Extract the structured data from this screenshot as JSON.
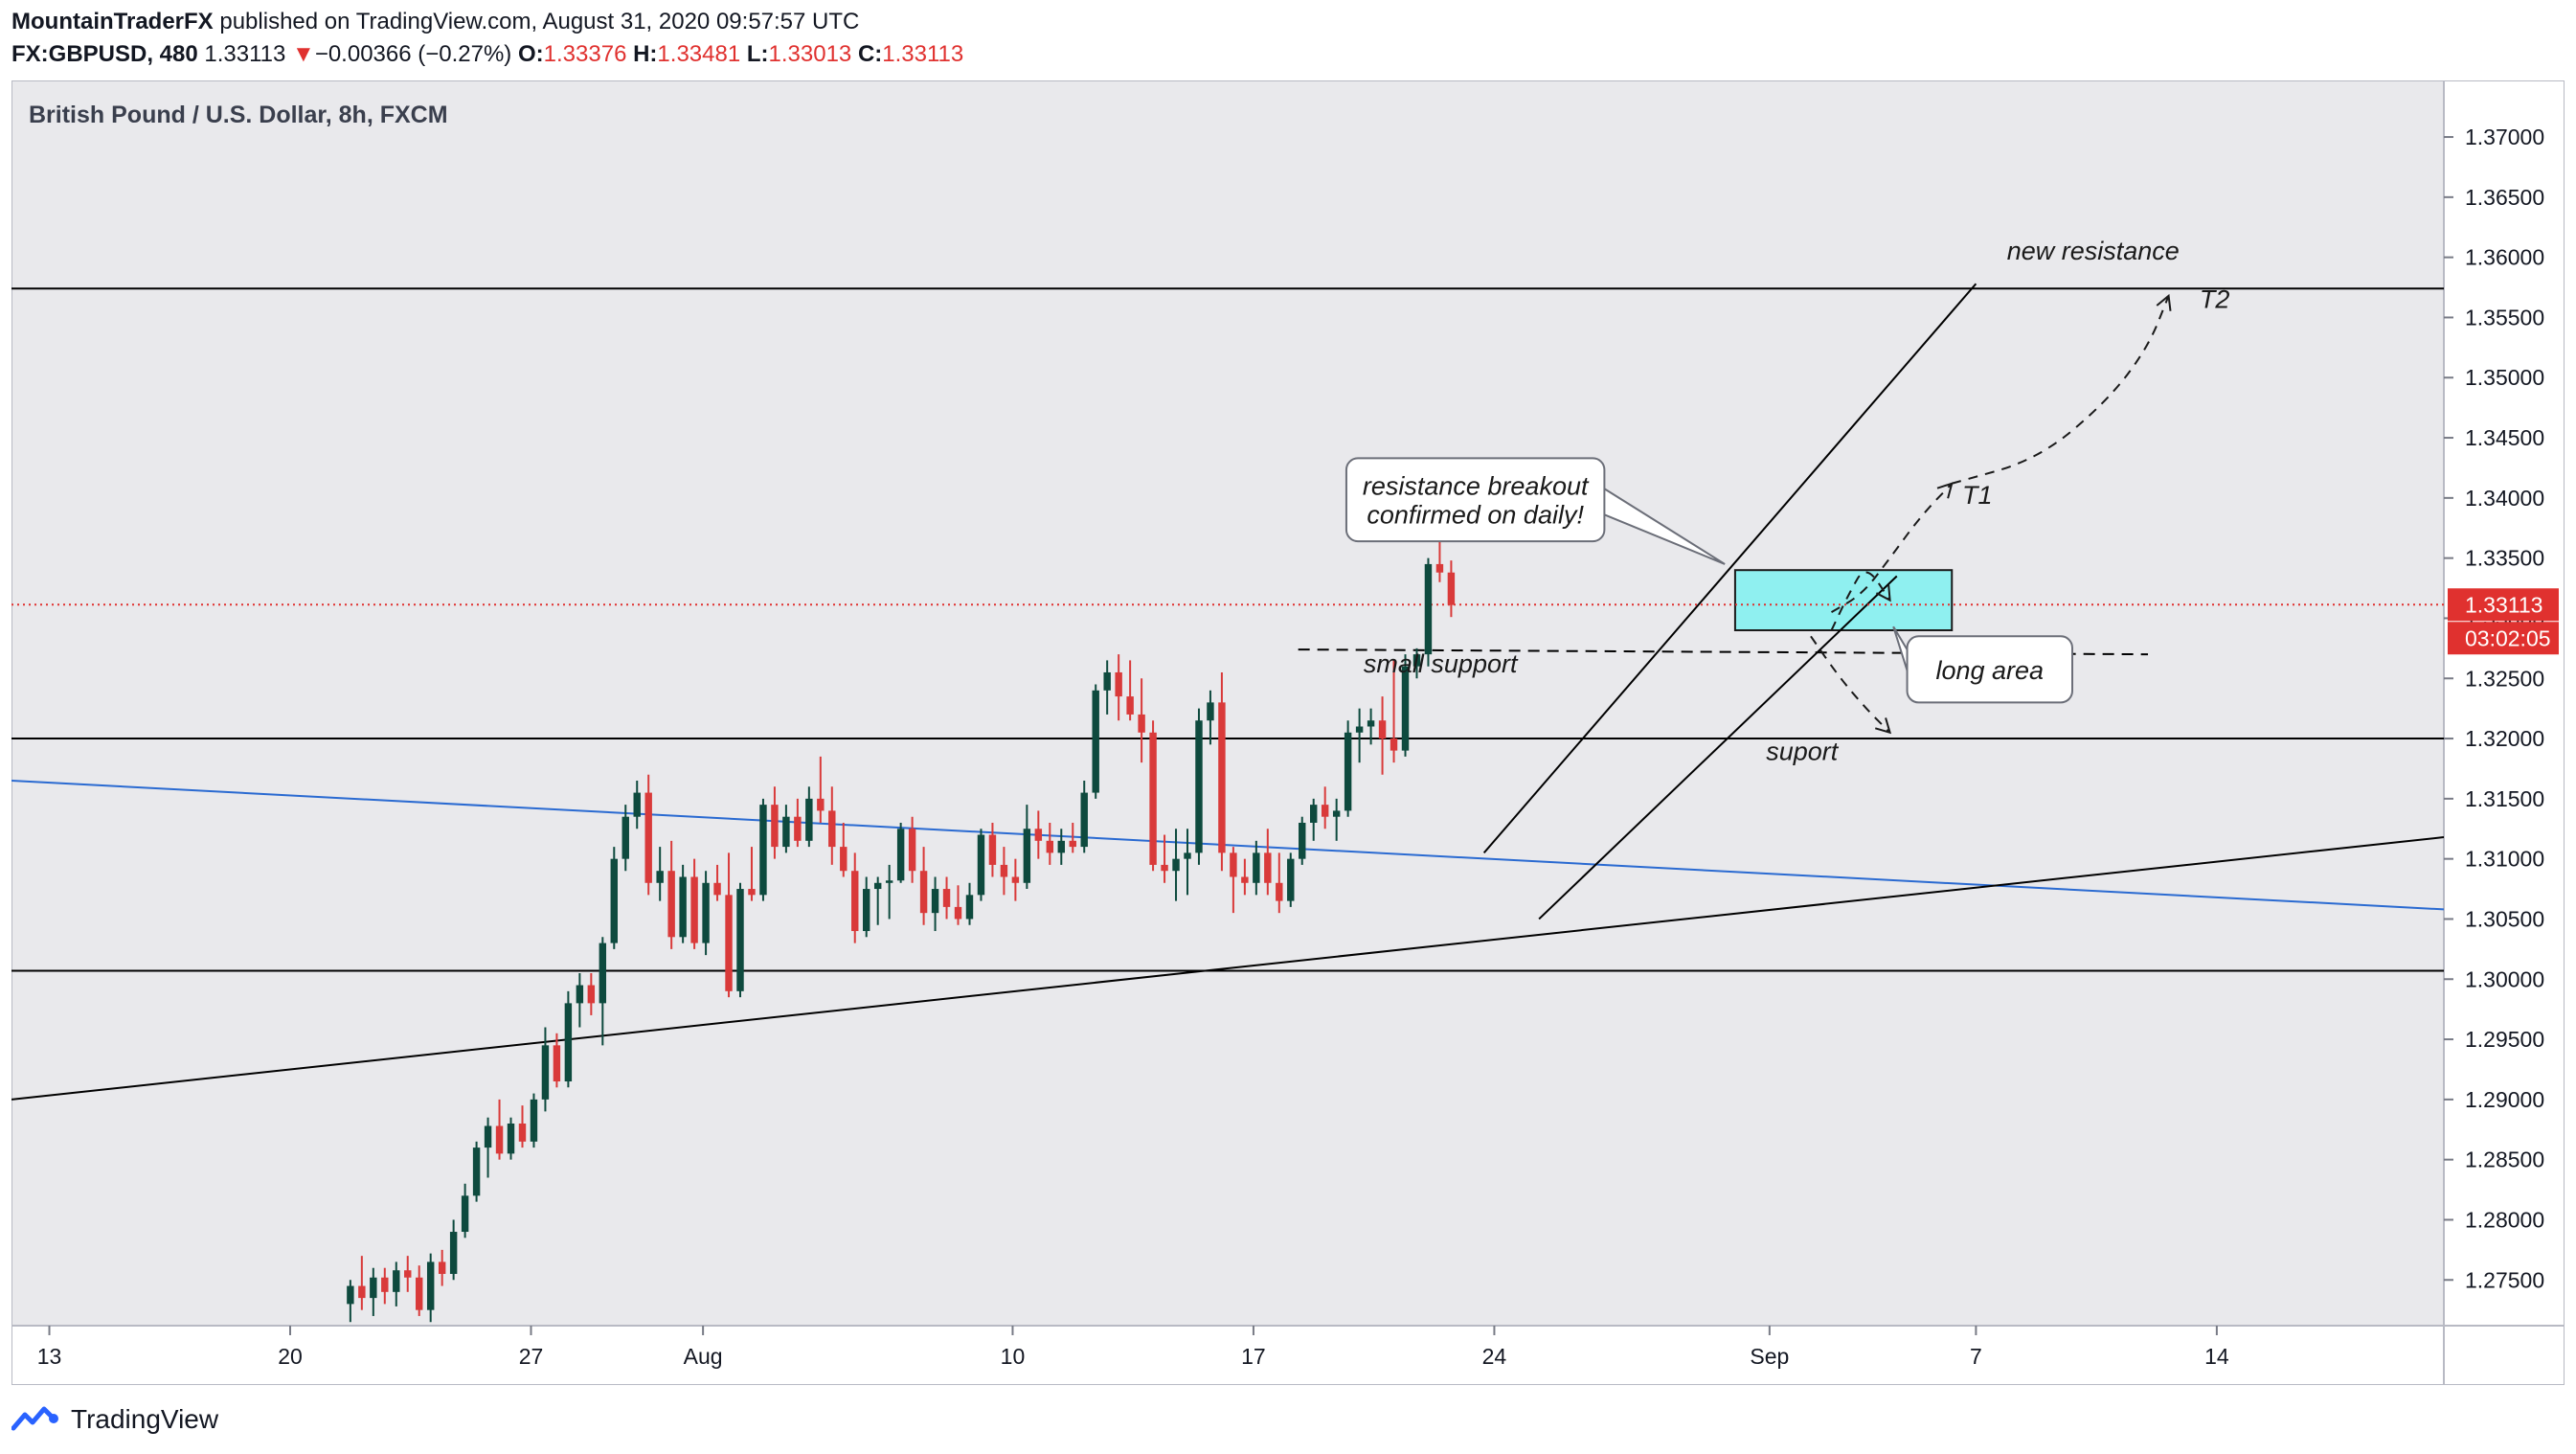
{
  "header": {
    "author": "MountainTraderFX",
    "published_text": "published on TradingView.com, August 31, 2020 09:57:57 UTC",
    "symbol": "FX:GBPUSD, 480",
    "last": "1.33113",
    "change_arrow": "▼",
    "change": "−0.00366 (−0.27%)",
    "o_label": "O:",
    "o": "1.33376",
    "h_label": "H:",
    "h": "1.33481",
    "l_label": "L:",
    "l": "1.33013",
    "c_label": "C:",
    "c": "1.33113"
  },
  "footer": {
    "brand": "TradingView",
    "logo_icon": "tradingview-logo-icon"
  },
  "colors": {
    "up": "#0e4a3e",
    "down": "#d93a3a",
    "blue_line": "#2a6ad1",
    "box_fill": "#8ff0f0",
    "price_tag": "#e0312f",
    "pane_bg": "#e9e9ec",
    "grid_line": "#cfcfd6"
  },
  "chart_data": {
    "type": "candlestick",
    "title": "British Pound / U.S. Dollar, 8h, FXCM",
    "y_ticks": [
      "1.27500",
      "1.28000",
      "1.28500",
      "1.29000",
      "1.29500",
      "1.30000",
      "1.30500",
      "1.31000",
      "1.31500",
      "1.32000",
      "1.32500",
      "1.33000",
      "1.33500",
      "1.34000",
      "1.34500",
      "1.35000",
      "1.35500",
      "1.36000",
      "1.36500",
      "1.37000"
    ],
    "ylim": [
      1.2712,
      1.3747
    ],
    "x_ticks": [
      {
        "label": "13",
        "day": 13
      },
      {
        "label": "20",
        "day": 20
      },
      {
        "label": "27",
        "day": 27
      },
      {
        "label": "Aug",
        "day": 32
      },
      {
        "label": "10",
        "day": 41
      },
      {
        "label": "17",
        "day": 48
      },
      {
        "label": "24",
        "day": 55
      },
      {
        "label": "Sep",
        "day": 63
      },
      {
        "label": "7",
        "day": 69
      },
      {
        "label": "14",
        "day": 76
      }
    ],
    "x_axis_unit": "day number counted from July 1, 2020 (July 13 = 13, Aug 1 = 32, Sep 1 = 63)",
    "xlim": [
      11.9,
      82.6
    ],
    "candles_start_day": 21.75,
    "candles_step_day": 0.3333,
    "candles": [
      [
        1.273,
        1.275,
        1.2715,
        1.2745
      ],
      [
        1.2745,
        1.277,
        1.2725,
        1.2735
      ],
      [
        1.2735,
        1.276,
        1.272,
        1.2752
      ],
      [
        1.2752,
        1.276,
        1.273,
        1.274
      ],
      [
        1.274,
        1.2765,
        1.2728,
        1.2758
      ],
      [
        1.2758,
        1.277,
        1.274,
        1.2752
      ],
      [
        1.2752,
        1.2762,
        1.272,
        1.2725
      ],
      [
        1.2725,
        1.2772,
        1.2715,
        1.2765
      ],
      [
        1.2765,
        1.2775,
        1.2745,
        1.2755
      ],
      [
        1.2755,
        1.28,
        1.275,
        1.279
      ],
      [
        1.279,
        1.283,
        1.2785,
        1.282
      ],
      [
        1.282,
        1.2865,
        1.2815,
        1.286
      ],
      [
        1.286,
        1.2885,
        1.2835,
        1.2878
      ],
      [
        1.2878,
        1.29,
        1.285,
        1.2855
      ],
      [
        1.2855,
        1.2885,
        1.285,
        1.288
      ],
      [
        1.288,
        1.2895,
        1.286,
        1.2865
      ],
      [
        1.2865,
        1.2905,
        1.286,
        1.29
      ],
      [
        1.29,
        1.296,
        1.289,
        1.2945
      ],
      [
        1.2945,
        1.2955,
        1.291,
        1.2915
      ],
      [
        1.2915,
        1.299,
        1.291,
        1.298
      ],
      [
        1.298,
        1.3005,
        1.296,
        1.2995
      ],
      [
        1.2995,
        1.3005,
        1.297,
        1.298
      ],
      [
        1.298,
        1.3035,
        1.2945,
        1.303
      ],
      [
        1.303,
        1.311,
        1.3025,
        1.31
      ],
      [
        1.31,
        1.3145,
        1.309,
        1.3135
      ],
      [
        1.3135,
        1.3165,
        1.3125,
        1.3155
      ],
      [
        1.3155,
        1.317,
        1.307,
        1.308
      ],
      [
        1.308,
        1.311,
        1.3065,
        1.309
      ],
      [
        1.309,
        1.3115,
        1.3025,
        1.3035
      ],
      [
        1.3035,
        1.3095,
        1.303,
        1.3085
      ],
      [
        1.3085,
        1.31,
        1.3025,
        1.303
      ],
      [
        1.303,
        1.309,
        1.302,
        1.308
      ],
      [
        1.308,
        1.3095,
        1.3065,
        1.307
      ],
      [
        1.307,
        1.3105,
        1.2985,
        1.299
      ],
      [
        1.299,
        1.308,
        1.2985,
        1.3075
      ],
      [
        1.3075,
        1.311,
        1.3065,
        1.307
      ],
      [
        1.307,
        1.315,
        1.3065,
        1.3145
      ],
      [
        1.3145,
        1.316,
        1.31,
        1.311
      ],
      [
        1.311,
        1.3145,
        1.3105,
        1.3135
      ],
      [
        1.3135,
        1.315,
        1.311,
        1.3115
      ],
      [
        1.3115,
        1.316,
        1.311,
        1.315
      ],
      [
        1.315,
        1.3185,
        1.313,
        1.314
      ],
      [
        1.314,
        1.316,
        1.3095,
        1.311
      ],
      [
        1.311,
        1.313,
        1.3085,
        1.309
      ],
      [
        1.309,
        1.3105,
        1.303,
        1.304
      ],
      [
        1.304,
        1.3085,
        1.3035,
        1.3075
      ],
      [
        1.3075,
        1.3085,
        1.3045,
        1.308
      ],
      [
        1.308,
        1.3095,
        1.305,
        1.3082
      ],
      [
        1.3082,
        1.313,
        1.308,
        1.3125
      ],
      [
        1.3125,
        1.3135,
        1.308,
        1.309
      ],
      [
        1.309,
        1.311,
        1.3045,
        1.3055
      ],
      [
        1.3055,
        1.3085,
        1.304,
        1.3075
      ],
      [
        1.3075,
        1.3085,
        1.305,
        1.306
      ],
      [
        1.306,
        1.3078,
        1.3045,
        1.305
      ],
      [
        1.305,
        1.308,
        1.3045,
        1.307
      ],
      [
        1.307,
        1.3125,
        1.3065,
        1.312
      ],
      [
        1.312,
        1.313,
        1.3085,
        1.3095
      ],
      [
        1.3095,
        1.311,
        1.307,
        1.3085
      ],
      [
        1.3085,
        1.31,
        1.3065,
        1.308
      ],
      [
        1.308,
        1.3145,
        1.3075,
        1.3125
      ],
      [
        1.3125,
        1.314,
        1.31,
        1.3115
      ],
      [
        1.3115,
        1.313,
        1.3095,
        1.3105
      ],
      [
        1.3105,
        1.3125,
        1.3095,
        1.3115
      ],
      [
        1.3115,
        1.313,
        1.3105,
        1.311
      ],
      [
        1.311,
        1.3165,
        1.3105,
        1.3155
      ],
      [
        1.3155,
        1.3245,
        1.315,
        1.324
      ],
      [
        1.324,
        1.3265,
        1.322,
        1.3255
      ],
      [
        1.3255,
        1.327,
        1.3215,
        1.3235
      ],
      [
        1.3235,
        1.3265,
        1.3215,
        1.322
      ],
      [
        1.322,
        1.325,
        1.318,
        1.3205
      ],
      [
        1.3205,
        1.3215,
        1.309,
        1.3095
      ],
      [
        1.3095,
        1.312,
        1.308,
        1.309
      ],
      [
        1.309,
        1.3125,
        1.3065,
        1.31
      ],
      [
        1.31,
        1.3125,
        1.307,
        1.3105
      ],
      [
        1.3105,
        1.3225,
        1.3095,
        1.3215
      ],
      [
        1.3215,
        1.324,
        1.3195,
        1.323
      ],
      [
        1.323,
        1.3255,
        1.309,
        1.3105
      ],
      [
        1.3105,
        1.311,
        1.3055,
        1.3085
      ],
      [
        1.3085,
        1.31,
        1.307,
        1.308
      ],
      [
        1.308,
        1.3115,
        1.307,
        1.3105
      ],
      [
        1.3105,
        1.3125,
        1.307,
        1.308
      ],
      [
        1.308,
        1.3105,
        1.3055,
        1.3065
      ],
      [
        1.3065,
        1.3105,
        1.306,
        1.31
      ],
      [
        1.31,
        1.3135,
        1.3095,
        1.313
      ],
      [
        1.313,
        1.315,
        1.3115,
        1.3145
      ],
      [
        1.3145,
        1.316,
        1.3125,
        1.3135
      ],
      [
        1.3135,
        1.315,
        1.3115,
        1.314
      ],
      [
        1.314,
        1.3215,
        1.3135,
        1.3205
      ],
      [
        1.3205,
        1.3225,
        1.318,
        1.321
      ],
      [
        1.321,
        1.3225,
        1.3195,
        1.3215
      ],
      [
        1.3215,
        1.3235,
        1.317,
        1.32
      ],
      [
        1.32,
        1.3265,
        1.318,
        1.319
      ],
      [
        1.319,
        1.327,
        1.3185,
        1.326
      ],
      [
        1.326,
        1.3275,
        1.325,
        1.327
      ],
      [
        1.327,
        1.335,
        1.326,
        1.3345
      ],
      [
        1.3345,
        1.3365,
        1.333,
        1.3338
      ],
      [
        1.3338,
        1.3348,
        1.3301,
        1.3311
      ]
    ],
    "lines": [
      {
        "name": "new resistance",
        "kind": "horizontal",
        "y": 1.3574,
        "color": "#000000"
      },
      {
        "name": "support",
        "kind": "horizontal",
        "y": 1.32,
        "color": "#000000"
      },
      {
        "name": "lower level",
        "kind": "horizontal",
        "y": 1.3007,
        "color": "#000000"
      },
      {
        "name": "small support",
        "kind": "dashed",
        "from": [
          49.3,
          1.3274
        ],
        "to": [
          74.0,
          1.327
        ],
        "color": "#000000"
      },
      {
        "name": "blue trendline",
        "kind": "trend",
        "from": [
          11.9,
          1.3165
        ],
        "to": [
          82.6,
          1.3058
        ],
        "color": "#2a6ad1"
      },
      {
        "name": "rising trendline",
        "kind": "trend",
        "from": [
          11.9,
          1.29
        ],
        "to": [
          82.6,
          1.3118
        ],
        "color": "#000000"
      },
      {
        "name": "channel upper",
        "kind": "trend",
        "from": [
          54.7,
          1.3105
        ],
        "to": [
          69.0,
          1.3578
        ],
        "color": "#000000"
      },
      {
        "name": "channel lower",
        "kind": "trend",
        "from": [
          56.3,
          1.305
        ],
        "to": [
          66.7,
          1.3335
        ],
        "color": "#000000"
      }
    ],
    "zones": [
      {
        "name": "long area box",
        "day_from": 62.0,
        "day_to": 68.3,
        "y_from": 1.329,
        "y_to": 1.334,
        "fill": "#8ff0f0"
      }
    ],
    "projections": [
      {
        "name": "projection to T1",
        "points": [
          [
            64.8,
            1.3305
          ],
          [
            65.7,
            1.332
          ],
          [
            66.5,
            1.335
          ],
          [
            67.4,
            1.3385
          ],
          [
            68.3,
            1.3412
          ]
        ]
      },
      {
        "name": "projection to T2",
        "points": [
          [
            68.3,
            1.3412
          ],
          [
            70.8,
            1.3432
          ],
          [
            72.8,
            1.348
          ],
          [
            74.0,
            1.3525
          ],
          [
            74.6,
            1.3568
          ]
        ]
      },
      {
        "name": "pullback to support",
        "points": [
          [
            64.2,
            1.3285
          ],
          [
            65.0,
            1.3252
          ],
          [
            65.8,
            1.3225
          ],
          [
            66.5,
            1.3205
          ]
        ]
      },
      {
        "name": "pullback into zone",
        "points": [
          [
            64.8,
            1.329
          ],
          [
            65.3,
            1.332
          ],
          [
            65.8,
            1.3345
          ],
          [
            66.5,
            1.3315
          ]
        ]
      }
    ],
    "labels": [
      {
        "name": "new-resistance-label",
        "text": "new resistance",
        "day": 69.9,
        "y": 1.3598
      },
      {
        "name": "t2-label",
        "text": "T2",
        "day": 75.5,
        "y": 1.3558
      },
      {
        "name": "t1-label",
        "text": "T1",
        "day": 68.6,
        "y": 1.3395
      },
      {
        "name": "small-support-label",
        "text": "small support",
        "day": 51.2,
        "y": 1.3255
      },
      {
        "name": "suport-label",
        "text": "suport",
        "day": 62.9,
        "y": 1.3182
      }
    ],
    "callouts": [
      {
        "name": "callout-breakout",
        "lines": [
          "resistance breakout",
          "confirmed on daily!"
        ],
        "box_day_from": 50.7,
        "box_day_to": 58.2,
        "box_y_from": 1.3364,
        "box_y_to": 1.3433,
        "pointer": [
          61.7,
          1.3345
        ]
      },
      {
        "name": "callout-long-area",
        "lines": [
          "long area"
        ],
        "box_day_from": 67.0,
        "box_day_to": 71.8,
        "box_y_from": 1.323,
        "box_y_to": 1.3285,
        "pointer": [
          66.6,
          1.3293
        ]
      }
    ],
    "last_price_tag": "1.33113",
    "countdown_tag": "03:02:05",
    "last_price": 1.33113
  }
}
